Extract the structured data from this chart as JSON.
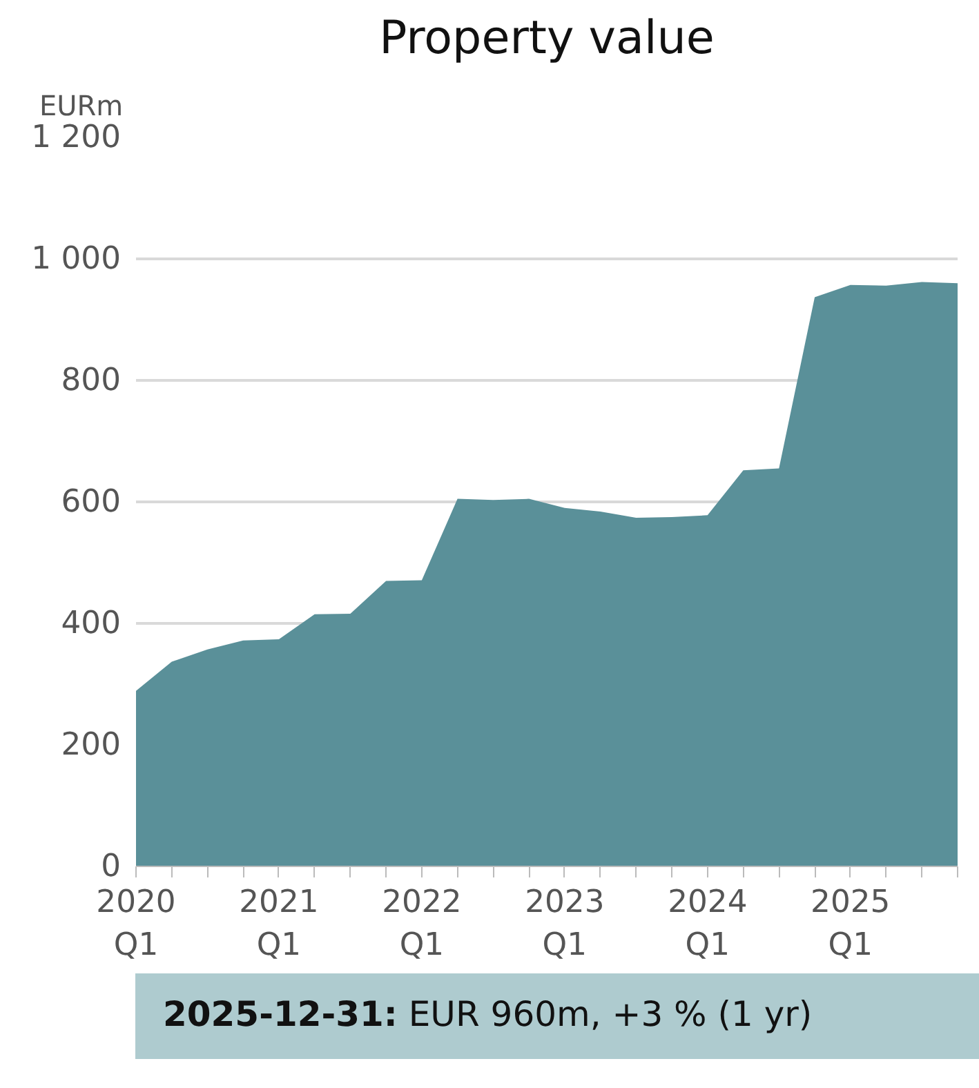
{
  "chart_data": {
    "type": "area",
    "title": "Property value",
    "ylabel": "EURm",
    "categories": [
      "2020\nQ1",
      null,
      null,
      null,
      "2021\nQ1",
      null,
      null,
      null,
      "2022\nQ1",
      null,
      null,
      null,
      "2023\nQ1",
      null,
      null,
      null,
      "2024\nQ1",
      null,
      null,
      null,
      "2025\nQ1",
      null,
      null,
      null
    ],
    "series": [
      {
        "color": "#5a9099",
        "values": [
          289,
          337,
          357,
          372,
          374,
          415,
          416,
          470,
          471,
          605,
          603,
          605,
          590,
          584,
          574,
          575,
          578,
          652,
          655,
          937,
          957,
          956,
          962,
          960
        ]
      }
    ],
    "ylim": [
      0,
      1200
    ],
    "yticks": [
      0,
      200,
      400,
      600,
      800,
      {
        "value": 1000,
        "label": "1 000"
      },
      {
        "value": 1200,
        "label": "1 200"
      }
    ],
    "grid": "y",
    "annotations": [
      "2025-12-31:",
      "EUR 960m, +3 % (1 yr)"
    ]
  }
}
